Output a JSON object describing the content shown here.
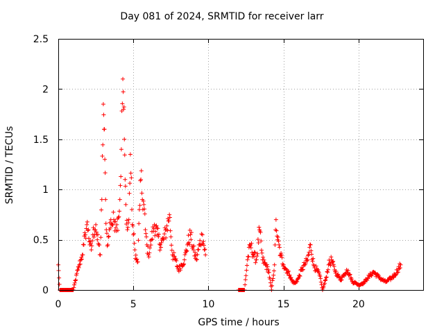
{
  "chart_data": {
    "type": "scatter",
    "title": "Day 081 of 2024, SRMTID for receiver larr",
    "xlabel": "GPS time / hours",
    "ylabel": "SRMTID / TECUs",
    "xlim": [
      0,
      24.3
    ],
    "ylim": [
      0,
      2.5
    ],
    "xticks": [
      0,
      5,
      10,
      15,
      20
    ],
    "yticks": [
      0,
      0.5,
      1,
      1.5,
      2,
      2.5
    ],
    "ytick_labels": [
      "0",
      "0.5",
      "1",
      "1.5",
      "2",
      "2.5"
    ],
    "grid": true,
    "marker": "+",
    "marker_color": "#ff0000",
    "series": [
      {
        "name": "SRMTID",
        "x": [
          0.0,
          0.05,
          0.1,
          0.2,
          0.3,
          0.4,
          0.5,
          0.6,
          0.7,
          0.8,
          0.9,
          1.0,
          1.3,
          1.4,
          1.5,
          1.6,
          1.7,
          1.8,
          1.9,
          2.0,
          2.1,
          2.2,
          2.3,
          2.4,
          2.5,
          2.6,
          2.7,
          2.8,
          2.9,
          3.0,
          3.05,
          3.1,
          3.15,
          3.2,
          3.3,
          3.4,
          3.5,
          3.6,
          3.7,
          3.8,
          3.9,
          4.0,
          4.1,
          4.2,
          4.3,
          4.35,
          4.4,
          4.45,
          4.5,
          4.6,
          4.7,
          4.8,
          4.9,
          5.0,
          5.1,
          5.2,
          5.3,
          5.4,
          5.5,
          5.6,
          5.7,
          5.8,
          5.9,
          6.0,
          6.2,
          6.4,
          6.6,
          6.8,
          7.0,
          7.2,
          7.4,
          7.6,
          7.8,
          8.0,
          8.2,
          8.4,
          8.6,
          8.8,
          9.0,
          9.2,
          9.4,
          9.6,
          9.8,
          12.0,
          12.2,
          12.4,
          12.6,
          12.8,
          13.0,
          13.2,
          13.4,
          13.6,
          13.8,
          14.0,
          14.2,
          14.4,
          14.5,
          14.6,
          14.8,
          15.0,
          15.2,
          15.4,
          15.6,
          15.8,
          16.0,
          16.2,
          16.4,
          16.6,
          16.8,
          17.0,
          17.2,
          17.4,
          17.6,
          17.8,
          18.0,
          18.2,
          18.4,
          18.6,
          18.8,
          19.0,
          19.2,
          19.4,
          19.6,
          19.8,
          20.0,
          20.2,
          20.4,
          20.6,
          20.8,
          21.0,
          21.2,
          21.4,
          21.6,
          21.8,
          22.0,
          22.2,
          22.4,
          22.6,
          22.8
        ],
        "y": [
          0.25,
          0.12,
          0.0,
          0.0,
          0.0,
          0.0,
          0.0,
          0.0,
          0.0,
          0.0,
          0.0,
          0.0,
          0.2,
          0.25,
          0.3,
          0.35,
          0.45,
          0.55,
          0.65,
          0.6,
          0.45,
          0.4,
          0.55,
          0.6,
          0.65,
          0.5,
          0.45,
          0.35,
          0.9,
          1.85,
          1.6,
          1.3,
          0.9,
          0.6,
          0.45,
          0.6,
          0.7,
          0.65,
          0.7,
          0.68,
          0.65,
          0.72,
          0.9,
          1.4,
          2.1,
          1.8,
          1.5,
          1.1,
          0.85,
          0.6,
          0.7,
          1.35,
          0.8,
          0.55,
          0.4,
          0.3,
          0.28,
          0.8,
          1.1,
          0.9,
          0.85,
          0.6,
          0.45,
          0.35,
          0.5,
          0.65,
          0.55,
          0.45,
          0.5,
          0.6,
          0.75,
          0.35,
          0.3,
          0.2,
          0.25,
          0.3,
          0.45,
          0.55,
          0.4,
          0.3,
          0.45,
          0.55,
          0.35,
          0.0,
          0.0,
          0.0,
          0.3,
          0.45,
          0.35,
          0.3,
          0.6,
          0.3,
          0.25,
          0.2,
          0.0,
          0.25,
          0.7,
          0.5,
          0.35,
          0.25,
          0.2,
          0.15,
          0.08,
          0.07,
          0.12,
          0.2,
          0.25,
          0.3,
          0.45,
          0.25,
          0.2,
          0.15,
          0.0,
          0.1,
          0.25,
          0.3,
          0.2,
          0.15,
          0.1,
          0.15,
          0.2,
          0.15,
          0.08,
          0.07,
          0.05,
          0.06,
          0.08,
          0.12,
          0.15,
          0.18,
          0.15,
          0.12,
          0.1,
          0.08,
          0.1,
          0.12,
          0.15,
          0.2,
          0.25
        ]
      }
    ]
  }
}
